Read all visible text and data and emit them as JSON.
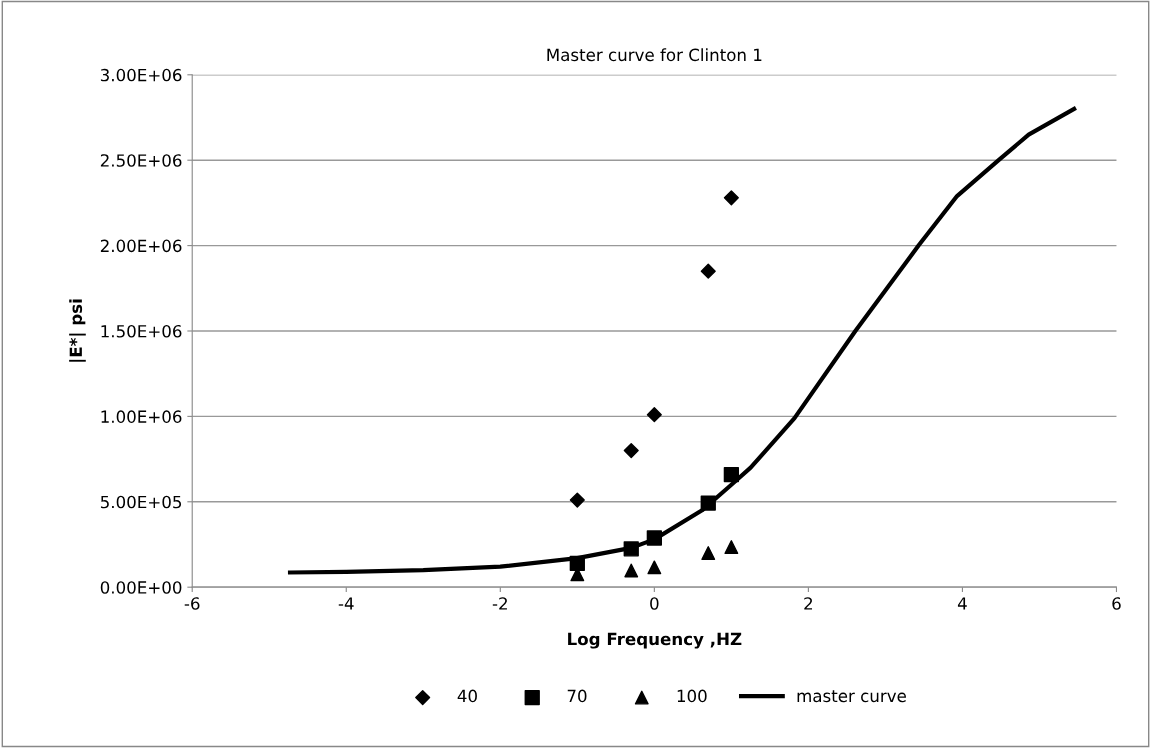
{
  "chart_data": {
    "type": "scatter",
    "title": "Master curve for Clinton 1",
    "xlabel": "Log Frequency ,HZ",
    "ylabel": "|E*| psi",
    "xlim": [
      -6,
      6
    ],
    "xticks": [
      -6,
      -4,
      -2,
      0,
      2,
      4,
      6
    ],
    "ylim": [
      0,
      3000000
    ],
    "yticks": [
      {
        "value": 0,
        "label": "0.00E+00"
      },
      {
        "value": 500000,
        "label": "5.00E+05"
      },
      {
        "value": 1000000,
        "label": "1.00E+06"
      },
      {
        "value": 1500000,
        "label": "1.50E+06"
      },
      {
        "value": 2000000,
        "label": "2.00E+06"
      },
      {
        "value": 2500000,
        "label": "2.50E+06"
      },
      {
        "value": 3000000,
        "label": "3.00E+06"
      }
    ],
    "grid": "y",
    "legend": "bottom",
    "series": [
      {
        "name": "40",
        "marker": "diamond",
        "color": "#000000",
        "x": [
          -1,
          -0.3,
          0,
          0.7,
          1
        ],
        "values": [
          510000,
          800000,
          1010000,
          1850000,
          2280000
        ]
      },
      {
        "name": "70",
        "marker": "square",
        "color": "#000000",
        "x": [
          -1,
          -0.3,
          0,
          0.7,
          1
        ],
        "values": [
          140000,
          224000,
          288000,
          492000,
          659000
        ]
      },
      {
        "name": "100",
        "marker": "triangle",
        "color": "#000000",
        "x": [
          -1,
          -0.3,
          0,
          0.7,
          1
        ],
        "values": [
          75000,
          98000,
          116000,
          200000,
          235000
        ]
      },
      {
        "name": "master curve",
        "type": "line",
        "marker": "none",
        "line_style": "solid",
        "color": "#000000",
        "x": [
          -4.73,
          -4,
          -3,
          -2,
          -1,
          -0.3,
          0,
          0.62,
          1,
          1.25,
          1.82,
          2.61,
          3.43,
          3.93,
          4.47,
          4.86,
          5.45
        ],
        "values": [
          86000,
          90000,
          100000,
          120000,
          170000,
          230000,
          280000,
          450000,
          600000,
          700000,
          990000,
          1500000,
          2000000,
          2290000,
          2500000,
          2650000,
          2800000
        ]
      }
    ]
  }
}
